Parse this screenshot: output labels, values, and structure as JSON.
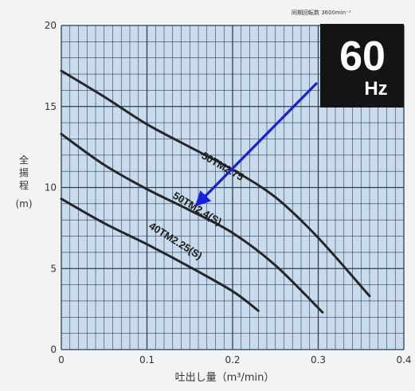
{
  "header": {
    "speed_label": "同期回転数 3600min⁻¹"
  },
  "badge": {
    "freq_value": "60",
    "freq_unit": "Hz"
  },
  "colors": {
    "grid_bg": "#c8dced",
    "grid_line": "#2f3f52",
    "curve": "#262626",
    "arrow": "#1620e0",
    "badge_bg": "#141414"
  },
  "chart_data": {
    "type": "line",
    "xlabel": "吐出し量（m³/min）",
    "ylabel_chars": [
      "全",
      "揚",
      "程"
    ],
    "ylabel_unit": "(m)",
    "xlim": [
      0,
      0.4
    ],
    "ylim": [
      0,
      20
    ],
    "xticks": [
      "0",
      "0.1",
      "0.2",
      "0.3",
      "0.4"
    ],
    "yticks": [
      "0",
      "5",
      "10",
      "15",
      "20"
    ],
    "series": [
      {
        "name": "50TM2.75",
        "x": [
          0,
          0.05,
          0.1,
          0.15,
          0.2,
          0.25,
          0.3,
          0.36
        ],
        "y": [
          17.2,
          15.6,
          13.9,
          12.5,
          11.1,
          9.4,
          6.9,
          3.3
        ]
      },
      {
        "name": "50TM2.4(S)",
        "x": [
          0,
          0.05,
          0.1,
          0.15,
          0.2,
          0.25,
          0.305
        ],
        "y": [
          13.3,
          11.4,
          9.9,
          8.6,
          7.2,
          5.2,
          2.3
        ]
      },
      {
        "name": "40TM2.25(S)",
        "x": [
          0,
          0.05,
          0.1,
          0.15,
          0.2,
          0.23
        ],
        "y": [
          9.3,
          7.8,
          6.5,
          5.1,
          3.6,
          2.4
        ]
      }
    ]
  }
}
